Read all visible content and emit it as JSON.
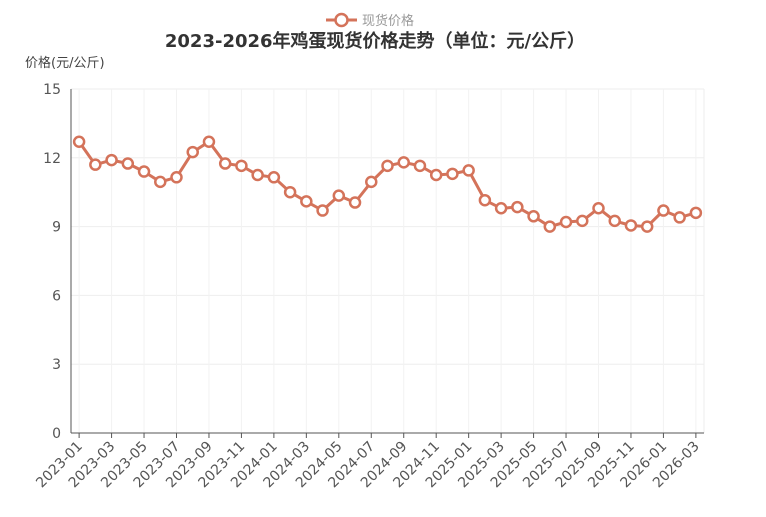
{
  "chart_data": {
    "type": "line",
    "title": "2023-2026年鸡蛋现货价格走势（单位：元/公斤）",
    "ylabel": "价格(元/公斤)",
    "xlabel": "",
    "ylim": [
      0,
      15
    ],
    "yticks": [
      "0",
      "3",
      "6",
      "9",
      "12",
      "15"
    ],
    "xticks": [
      "2023-01",
      "2023-03",
      "2023-05",
      "2023-07",
      "2023-09",
      "2023-11",
      "2024-01",
      "2024-03",
      "2024-05",
      "2024-07",
      "2024-09",
      "2024-11",
      "2025-01",
      "2025-03",
      "2025-05",
      "2025-07",
      "2025-09",
      "2025-11",
      "2026-01",
      "2026-03"
    ],
    "grid": true,
    "legend_position": "top",
    "series": [
      {
        "name": "现货价格",
        "color": "#d4735a",
        "x": [
          "2023-01",
          "2023-02",
          "2023-03",
          "2023-04",
          "2023-05",
          "2023-06",
          "2023-07",
          "2023-08",
          "2023-09",
          "2023-10",
          "2023-11",
          "2023-12",
          "2024-01",
          "2024-02",
          "2024-03",
          "2024-04",
          "2024-05",
          "2024-06",
          "2024-07",
          "2024-08",
          "2024-09",
          "2024-10",
          "2024-11",
          "2024-12",
          "2025-01",
          "2025-02",
          "2025-03",
          "2025-04",
          "2025-05",
          "2025-06",
          "2025-07",
          "2025-08",
          "2025-09",
          "2025-10",
          "2025-11",
          "2025-12",
          "2026-01",
          "2026-02",
          "2026-03"
        ],
        "values": [
          12.7,
          11.7,
          11.9,
          11.75,
          11.4,
          10.95,
          11.15,
          12.25,
          12.7,
          11.75,
          11.65,
          11.25,
          11.15,
          10.5,
          10.1,
          9.7,
          10.35,
          10.05,
          10.95,
          11.65,
          11.8,
          11.65,
          11.25,
          11.3,
          11.45,
          10.15,
          9.8,
          9.85,
          9.45,
          9.0,
          9.2,
          9.25,
          9.8,
          9.25,
          9.05,
          9.0,
          9.7,
          9.4,
          9.6
        ]
      }
    ]
  }
}
